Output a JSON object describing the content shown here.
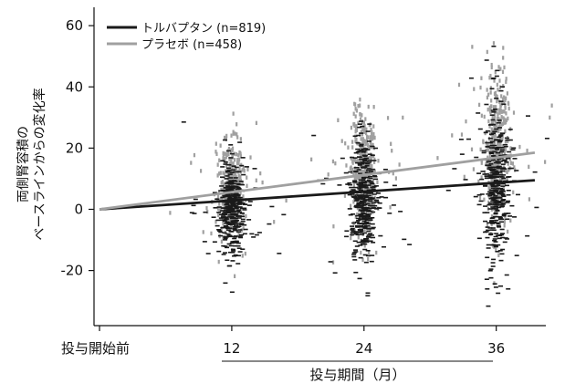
{
  "chart_data": {
    "type": "scatter",
    "title": "",
    "ylabel_lines": [
      "両側腎容積の",
      "ベースラインからの変化率"
    ],
    "xlabel": "投与期間（月）",
    "xtick_labels": [
      "投与開始前",
      "12",
      "24",
      "36"
    ],
    "x_ticks": [
      0,
      12,
      24,
      36
    ],
    "y_ticks": [
      -20,
      0,
      20,
      40,
      60
    ],
    "xlim": [
      -0.5,
      40.5
    ],
    "ylim": [
      -38,
      66
    ],
    "legend_position": "top-left",
    "series": [
      {
        "name": "トルバプタン (n=819)",
        "color": "#1a1a1a",
        "trend_line": {
          "x": [
            0,
            39.5
          ],
          "y": [
            0,
            9.5
          ]
        },
        "clusters": [
          {
            "x": 12,
            "mean": 0,
            "sd": 8
          },
          {
            "x": 24,
            "mean": 3,
            "sd": 10
          },
          {
            "x": 36,
            "mean": 7,
            "sd": 14
          }
        ]
      },
      {
        "name": "プラセボ (n=458)",
        "color": "#a0a0a0",
        "trend_line": {
          "x": [
            0,
            39.5
          ],
          "y": [
            0,
            18.5
          ]
        },
        "clusters": [
          {
            "x": 12,
            "mean": 6,
            "sd": 8
          },
          {
            "x": 24,
            "mean": 12,
            "sd": 10
          },
          {
            "x": 36,
            "mean": 19,
            "sd": 13
          }
        ]
      }
    ]
  }
}
